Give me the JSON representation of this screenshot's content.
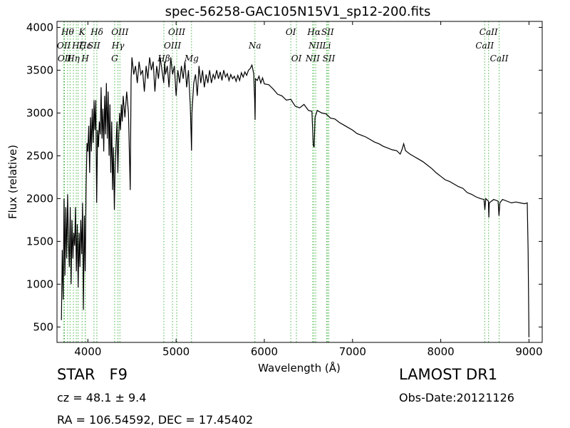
{
  "chart_data": {
    "type": "line",
    "title": "spec-56258-GAC105N15V1_sp12-200.fits",
    "xlabel": "Wavelength (Å)",
    "ylabel": "Flux (relative)",
    "xlim": [
      3650,
      9150
    ],
    "ylim": [
      320,
      4070
    ],
    "x_ticks": [
      4000,
      5000,
      6000,
      7000,
      8000,
      9000
    ],
    "y_ticks": [
      500,
      1000,
      1500,
      2000,
      2500,
      3000,
      3500,
      4000
    ],
    "grid": false,
    "spectrum": {
      "color": "#000000",
      "points": [
        [
          3700,
          580
        ],
        [
          3710,
          1400
        ],
        [
          3720,
          820
        ],
        [
          3730,
          2000
        ],
        [
          3740,
          1100
        ],
        [
          3750,
          1900
        ],
        [
          3760,
          1300
        ],
        [
          3770,
          2050
        ],
        [
          3780,
          1500
        ],
        [
          3790,
          1200
        ],
        [
          3800,
          1900
        ],
        [
          3810,
          1000
        ],
        [
          3820,
          1750
        ],
        [
          3830,
          1300
        ],
        [
          3840,
          1600
        ],
        [
          3850,
          1450
        ],
        [
          3860,
          1900
        ],
        [
          3870,
          1150
        ],
        [
          3880,
          1700
        ],
        [
          3890,
          960
        ],
        [
          3900,
          1600
        ],
        [
          3910,
          1200
        ],
        [
          3920,
          1750
        ],
        [
          3930,
          1350
        ],
        [
          3940,
          1950
        ],
        [
          3950,
          700
        ],
        [
          3960,
          1800
        ],
        [
          3970,
          1150
        ],
        [
          3980,
          2150
        ],
        [
          3990,
          2650
        ],
        [
          4000,
          2550
        ],
        [
          4010,
          2850
        ],
        [
          4020,
          2300
        ],
        [
          4030,
          2950
        ],
        [
          4040,
          2550
        ],
        [
          4050,
          3050
        ],
        [
          4060,
          2650
        ],
        [
          4070,
          3150
        ],
        [
          4080,
          2800
        ],
        [
          4090,
          3150
        ],
        [
          4100,
          1950
        ],
        [
          4110,
          2800
        ],
        [
          4120,
          2600
        ],
        [
          4130,
          2900
        ],
        [
          4140,
          2750
        ],
        [
          4150,
          3300
        ],
        [
          4160,
          2700
        ],
        [
          4170,
          3050
        ],
        [
          4180,
          2550
        ],
        [
          4190,
          3200
        ],
        [
          4200,
          2750
        ],
        [
          4210,
          3350
        ],
        [
          4220,
          2700
        ],
        [
          4230,
          3250
        ],
        [
          4240,
          2500
        ],
        [
          4250,
          3100
        ],
        [
          4260,
          2300
        ],
        [
          4270,
          2900
        ],
        [
          4280,
          2100
        ],
        [
          4290,
          2600
        ],
        [
          4300,
          1870
        ],
        [
          4310,
          2400
        ],
        [
          4320,
          2650
        ],
        [
          4330,
          2900
        ],
        [
          4340,
          2300
        ],
        [
          4350,
          2750
        ],
        [
          4360,
          3000
        ],
        [
          4370,
          2800
        ],
        [
          4380,
          3100
        ],
        [
          4390,
          2900
        ],
        [
          4400,
          3200
        ],
        [
          4420,
          2950
        ],
        [
          4440,
          3250
        ],
        [
          4460,
          3000
        ],
        [
          4480,
          2100
        ],
        [
          4490,
          3400
        ],
        [
          4500,
          3650
        ],
        [
          4520,
          3450
        ],
        [
          4540,
          3550
        ],
        [
          4560,
          3350
        ],
        [
          4580,
          3600
        ],
        [
          4600,
          3450
        ],
        [
          4620,
          3500
        ],
        [
          4640,
          3250
        ],
        [
          4660,
          3550
        ],
        [
          4680,
          3400
        ],
        [
          4700,
          3650
        ],
        [
          4720,
          3500
        ],
        [
          4740,
          3600
        ],
        [
          4760,
          3250
        ],
        [
          4780,
          3550
        ],
        [
          4800,
          3400
        ],
        [
          4820,
          3650
        ],
        [
          4840,
          3500
        ],
        [
          4860,
          3350
        ],
        [
          4870,
          3600
        ],
        [
          4880,
          3450
        ],
        [
          4900,
          3550
        ],
        [
          4920,
          3300
        ],
        [
          4940,
          3650
        ],
        [
          4960,
          3450
        ],
        [
          4980,
          3550
        ],
        [
          5000,
          3200
        ],
        [
          5020,
          3500
        ],
        [
          5040,
          3350
        ],
        [
          5060,
          3550
        ],
        [
          5080,
          3400
        ],
        [
          5100,
          3600
        ],
        [
          5120,
          3300
        ],
        [
          5140,
          3500
        ],
        [
          5160,
          3100
        ],
        [
          5170,
          2750
        ],
        [
          5175,
          2560
        ],
        [
          5180,
          3000
        ],
        [
          5200,
          3350
        ],
        [
          5220,
          3450
        ],
        [
          5240,
          3200
        ],
        [
          5260,
          3550
        ],
        [
          5280,
          3350
        ],
        [
          5300,
          3500
        ],
        [
          5320,
          3300
        ],
        [
          5340,
          3450
        ],
        [
          5360,
          3350
        ],
        [
          5380,
          3500
        ],
        [
          5400,
          3350
        ],
        [
          5420,
          3450
        ],
        [
          5440,
          3400
        ],
        [
          5460,
          3500
        ],
        [
          5480,
          3400
        ],
        [
          5500,
          3480
        ],
        [
          5520,
          3380
        ],
        [
          5540,
          3500
        ],
        [
          5560,
          3420
        ],
        [
          5580,
          3460
        ],
        [
          5600,
          3380
        ],
        [
          5620,
          3450
        ],
        [
          5640,
          3400
        ],
        [
          5660,
          3430
        ],
        [
          5680,
          3370
        ],
        [
          5700,
          3440
        ],
        [
          5720,
          3380
        ],
        [
          5740,
          3470
        ],
        [
          5760,
          3420
        ],
        [
          5780,
          3480
        ],
        [
          5800,
          3440
        ],
        [
          5820,
          3500
        ],
        [
          5840,
          3520
        ],
        [
          5860,
          3560
        ],
        [
          5880,
          3460
        ],
        [
          5890,
          3160
        ],
        [
          5895,
          2920
        ],
        [
          5900,
          3400
        ],
        [
          5920,
          3380
        ],
        [
          5940,
          3430
        ],
        [
          5960,
          3350
        ],
        [
          5980,
          3410
        ],
        [
          6000,
          3340
        ],
        [
          6050,
          3330
        ],
        [
          6100,
          3280
        ],
        [
          6150,
          3220
        ],
        [
          6200,
          3200
        ],
        [
          6250,
          3150
        ],
        [
          6300,
          3160
        ],
        [
          6350,
          3080
        ],
        [
          6400,
          3060
        ],
        [
          6450,
          3100
        ],
        [
          6500,
          3030
        ],
        [
          6540,
          3020
        ],
        [
          6555,
          2620
        ],
        [
          6565,
          2600
        ],
        [
          6575,
          2950
        ],
        [
          6600,
          3030
        ],
        [
          6650,
          3000
        ],
        [
          6700,
          2990
        ],
        [
          6750,
          2940
        ],
        [
          6800,
          2930
        ],
        [
          6850,
          2890
        ],
        [
          6900,
          2860
        ],
        [
          6950,
          2830
        ],
        [
          7000,
          2800
        ],
        [
          7050,
          2760
        ],
        [
          7100,
          2740
        ],
        [
          7150,
          2720
        ],
        [
          7200,
          2690
        ],
        [
          7250,
          2660
        ],
        [
          7300,
          2640
        ],
        [
          7350,
          2610
        ],
        [
          7400,
          2590
        ],
        [
          7450,
          2570
        ],
        [
          7500,
          2560
        ],
        [
          7540,
          2520
        ],
        [
          7560,
          2570
        ],
        [
          7580,
          2640
        ],
        [
          7600,
          2560
        ],
        [
          7650,
          2520
        ],
        [
          7700,
          2490
        ],
        [
          7750,
          2460
        ],
        [
          7800,
          2430
        ],
        [
          7850,
          2390
        ],
        [
          7900,
          2350
        ],
        [
          7950,
          2300
        ],
        [
          8000,
          2260
        ],
        [
          8050,
          2220
        ],
        [
          8100,
          2200
        ],
        [
          8150,
          2170
        ],
        [
          8200,
          2140
        ],
        [
          8250,
          2120
        ],
        [
          8300,
          2070
        ],
        [
          8350,
          2050
        ],
        [
          8400,
          2020
        ],
        [
          8450,
          2000
        ],
        [
          8490,
          1990
        ],
        [
          8500,
          1870
        ],
        [
          8510,
          2000
        ],
        [
          8540,
          1970
        ],
        [
          8545,
          1780
        ],
        [
          8550,
          1950
        ],
        [
          8600,
          1990
        ],
        [
          8650,
          1970
        ],
        [
          8660,
          1800
        ],
        [
          8670,
          1950
        ],
        [
          8700,
          1990
        ],
        [
          8750,
          1970
        ],
        [
          8800,
          1950
        ],
        [
          8850,
          1960
        ],
        [
          8900,
          1950
        ],
        [
          8950,
          1940
        ],
        [
          8980,
          1950
        ],
        [
          8990,
          1400
        ],
        [
          9000,
          380
        ]
      ]
    },
    "line_markers": {
      "color": "#47b747",
      "lines": [
        {
          "x": 3727,
          "label": "OII",
          "row": 1
        },
        {
          "x": 3735,
          "label": "OII",
          "row": 2
        },
        {
          "x": 3770,
          "label": "Hθ",
          "row": 0
        },
        {
          "x": 3798,
          "label": "",
          "row": 0
        },
        {
          "x": 3836,
          "label": "Hη",
          "row": 2
        },
        {
          "x": 3869,
          "label": "",
          "row": 0
        },
        {
          "x": 3889,
          "label": "Hζ",
          "row": 1
        },
        {
          "x": 3934,
          "label": "K",
          "row": 0
        },
        {
          "x": 3970,
          "label": "H",
          "row": 2
        },
        {
          "x": 3970,
          "label": "Hε",
          "row": 1
        },
        {
          "x": 4069,
          "label": "SII",
          "row": 1
        },
        {
          "x": 4102,
          "label": "Hδ",
          "row": 0
        },
        {
          "x": 4304,
          "label": "G",
          "row": 2
        },
        {
          "x": 4341,
          "label": "Hγ",
          "row": 1
        },
        {
          "x": 4363,
          "label": "OIII",
          "row": 0
        },
        {
          "x": 4861,
          "label": "Hβ",
          "row": 2
        },
        {
          "x": 4959,
          "label": "OIII",
          "row": 1
        },
        {
          "x": 5007,
          "label": "OIII",
          "row": 0
        },
        {
          "x": 5175,
          "label": "Mg",
          "row": 2
        },
        {
          "x": 5893,
          "label": "Na",
          "row": 1
        },
        {
          "x": 6300,
          "label": "OI",
          "row": 0
        },
        {
          "x": 6364,
          "label": "OI",
          "row": 2
        },
        {
          "x": 6548,
          "label": "NII",
          "row": 2
        },
        {
          "x": 6563,
          "label": "Hα",
          "row": 0
        },
        {
          "x": 6583,
          "label": "NII",
          "row": 1
        },
        {
          "x": 6707,
          "label": "Li",
          "row": 1
        },
        {
          "x": 6717,
          "label": "SII",
          "row": 0
        },
        {
          "x": 6731,
          "label": "SII",
          "row": 2
        },
        {
          "x": 8498,
          "label": "CaII",
          "row": 1
        },
        {
          "x": 8542,
          "label": "CaII",
          "row": 0
        },
        {
          "x": 8662,
          "label": "CaII",
          "row": 2
        }
      ]
    }
  },
  "info": {
    "class_label": "STAR",
    "subclass_label": "F9",
    "survey": "LAMOST DR1",
    "redshift": "cz = 48.1 ± 9.4",
    "obs_date": "Obs-Date:20121126",
    "coords": "RA = 106.54592, DEC = 17.45402"
  }
}
